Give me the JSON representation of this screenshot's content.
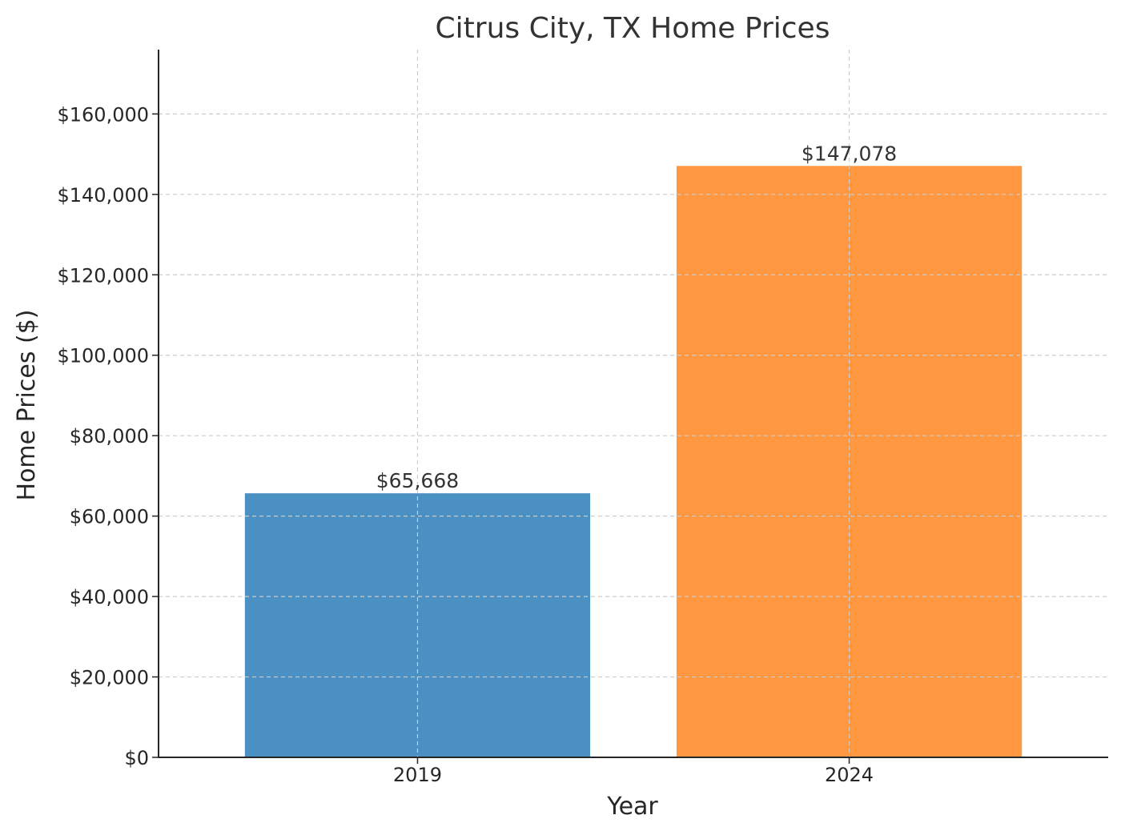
{
  "chart_data": {
    "type": "bar",
    "title": "Citrus City, TX Home Prices",
    "xlabel": "Year",
    "ylabel": "Home Prices ($)",
    "categories": [
      "2019",
      "2024"
    ],
    "values": [
      65668,
      147078
    ],
    "data_labels": [
      "$65,668",
      "$147,078"
    ],
    "colors": [
      "#4a90c2",
      "#ff9840"
    ],
    "ylim": [
      0,
      176000
    ],
    "yticks": [
      0,
      20000,
      40000,
      60000,
      80000,
      100000,
      120000,
      140000,
      160000
    ],
    "ytick_labels": [
      "$0",
      "$20,000",
      "$40,000",
      "$60,000",
      "$80,000",
      "$100,000",
      "$120,000",
      "$140,000",
      "$160,000"
    ],
    "grid": true,
    "legend": "none"
  }
}
